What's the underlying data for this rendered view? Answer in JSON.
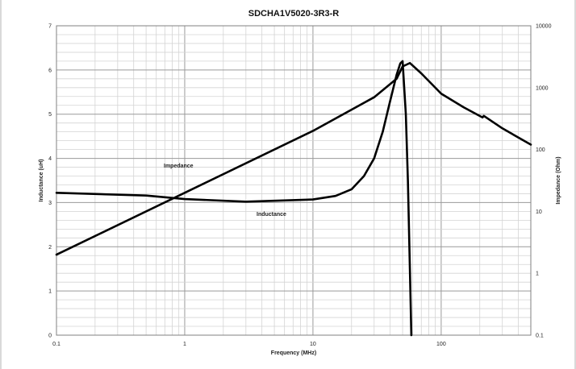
{
  "chart_data": {
    "type": "line",
    "title": "SDCHA1V5020-3R3-R",
    "xlabel": "Frequency (MHz)",
    "ylabel_left": "Inductance (uH)",
    "ylabel_right": "Impedance (Ohm)",
    "x_scale": "log",
    "xlim": [
      0.1,
      500
    ],
    "ylim_left": [
      0,
      7
    ],
    "ylim_right": [
      0.1,
      10000
    ],
    "y_right_scale": "log",
    "grid": true,
    "x_tick_labels": [
      "0.1",
      "1",
      "10",
      "100"
    ],
    "y_left_tick_labels": [
      "0",
      "1",
      "2",
      "3",
      "4",
      "5",
      "6",
      "7"
    ],
    "y_right_tick_labels": [
      "0.1",
      "1",
      "10",
      "100",
      "1000",
      "10000"
    ],
    "annotations": [
      "Impedance",
      "Inductance"
    ],
    "series": [
      {
        "name": "Impedance",
        "axis": "right",
        "x": [
          0.1,
          1,
          10,
          30,
          45,
          50,
          57,
          70,
          100,
          150,
          210,
          215,
          300,
          500
        ],
        "y": [
          2,
          20,
          200,
          700,
          1400,
          2200,
          2500,
          1700,
          800,
          480,
          330,
          350,
          220,
          120
        ]
      },
      {
        "name": "Inductance",
        "axis": "left",
        "x": [
          0.1,
          0.5,
          1,
          3,
          10,
          15,
          20,
          25,
          30,
          35,
          40,
          45,
          48,
          50,
          53,
          55,
          57,
          58,
          58.5
        ],
        "y": [
          3.22,
          3.16,
          3.08,
          3.02,
          3.07,
          3.15,
          3.3,
          3.6,
          4.0,
          4.6,
          5.3,
          5.9,
          6.15,
          6.2,
          5.0,
          3.5,
          1.5,
          0.5,
          0
        ]
      }
    ]
  }
}
